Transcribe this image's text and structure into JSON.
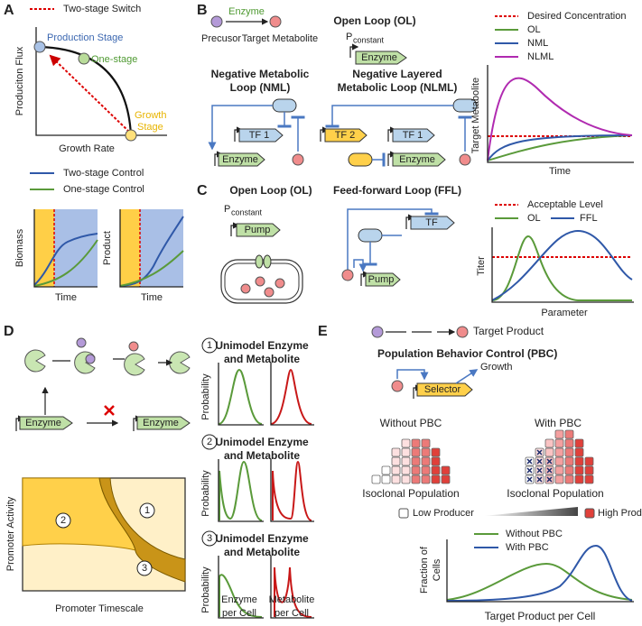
{
  "panel_a": {
    "label": "A",
    "legend_switch": "Two-stage Switch",
    "production_stage": "Production Stage",
    "one_stage": "One-stage",
    "growth_stage": [
      "Growth",
      "Stage"
    ],
    "y_axis": "Produciton Flux",
    "x_axis": "Growth Rate",
    "legend": [
      "Two-stage Control",
      "One-stage Control"
    ],
    "plots": [
      {
        "y_axis": "Biomass",
        "x_axis": "Time"
      },
      {
        "y_axis": "Product",
        "x_axis": "Time"
      }
    ]
  },
  "panel_b": {
    "label": "B",
    "enzyme": "Enzyme",
    "precursor": "Precusor",
    "target": "Target Metabolite",
    "ol_title": "Open Loop (OL)",
    "promoter": "P",
    "promoter_sub": "constant",
    "ol_gene": "Enzyme",
    "nml_title": [
      "Negative Metabolic",
      "Loop (NML)"
    ],
    "nml_tf": "TF 1",
    "nml_gene": "Enzyme",
    "nlml_title": [
      "Negative Layered",
      "Metabolic Loop (NLML)"
    ],
    "nlml_tf2": "TF 2",
    "nlml_tf1": "TF 1",
    "nlml_gene": "Enzyme",
    "legend": [
      "Desired Concentration",
      "OL",
      "NML",
      "NLML"
    ],
    "y_axis": "Target Metabolite",
    "x_axis": "Time"
  },
  "panel_c": {
    "label": "C",
    "ol_title": "Open Loop (OL)",
    "ffl_title": "Feed-forward Loop (FFL)",
    "promoter": "P",
    "promoter_sub": "constant",
    "ol_gene": "Pump",
    "ffl_tf": "TF",
    "ffl_gene": "Pump",
    "legend": [
      "Acceptable Level",
      "OL",
      "FFL"
    ],
    "y_axis": "Titer",
    "x_axis": "Parameter"
  },
  "panel_d": {
    "label": "D",
    "genes": [
      "Enzyme",
      "Enzyme"
    ],
    "regions": [
      "1",
      "2",
      "3"
    ],
    "y_axis": "Promoter Activity",
    "x_axis": "Promoter Timescale",
    "rows": [
      {
        "number": "1",
        "title": [
          "Unimodel Enzyme",
          "and Metabolite"
        ],
        "y_axis": "Probability"
      },
      {
        "number": "2",
        "title": [
          "Unimodel Enzyme",
          "and Metabolite"
        ],
        "y_axis": "Probability"
      },
      {
        "number": "3",
        "title": [
          "Unimodel Enzyme",
          "and Metabolite"
        ],
        "y_axis": "Probability"
      }
    ],
    "x_axes": [
      [
        "Enzyme",
        "per Cell"
      ],
      [
        "Metabolite",
        "per Cell"
      ]
    ]
  },
  "panel_e": {
    "label": "E",
    "target": "Target Product",
    "title": "Population Behavior Control (PBC)",
    "gene": "Selector",
    "growth": "Growth",
    "groups": [
      "Without PBC",
      "With PBC"
    ],
    "population": [
      "Isoclonal Population",
      "Isoclonal Population"
    ],
    "producers": [
      "Low Producer",
      "High Producer"
    ],
    "legend": [
      "Without PBC",
      "With PBC"
    ],
    "y_axis": [
      "Fraction of",
      "Cells"
    ],
    "x_axis": "Target Product per Cell"
  }
}
